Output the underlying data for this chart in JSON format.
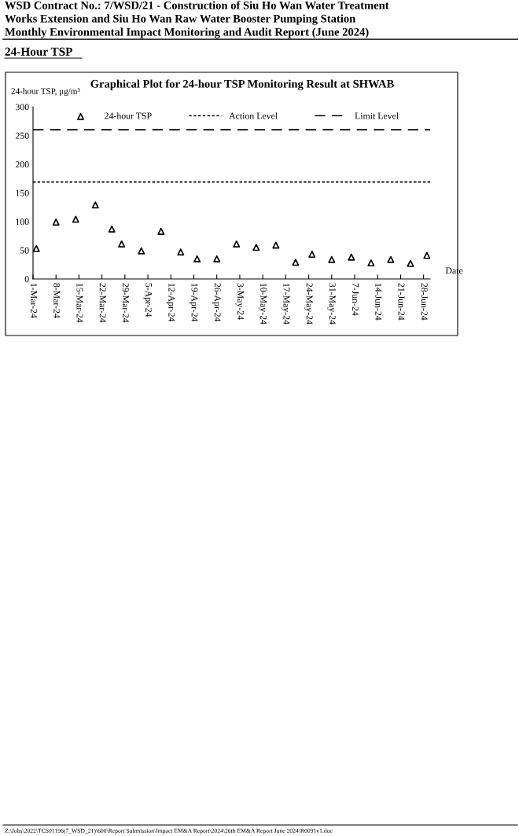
{
  "chart_data": {
    "type": "scatter",
    "title": "Graphical Plot for 24-hour TSP Monitoring Result at SHWAB",
    "ylabel": "24-hour TSP, μg/m³",
    "xlabel": "Date",
    "annotations": [
      "WSD Contract No.: 7/WSD/21 - Construction of Siu Ho Wan Water Treatment",
      "Works Extension and Siu Ho Wan Raw Water Booster Pumping Station",
      "Monthly Environmental Impact Monitoring and Audit Report (June 2024)",
      "24-Hour TSP",
      "Z:\\Jobs\\2022\\TCS01196(7_WSD_21)\\600\\Report Submission\\Impact EM&A Report\\2024\\26th EM&A Report June 2024\\R0091v1.doc"
    ],
    "x": [
      "2024-03-02",
      "2024-03-08",
      "2024-03-14",
      "2024-03-20",
      "2024-03-25",
      "2024-03-28",
      "2024-04-03",
      "2024-04-09",
      "2024-04-15",
      "2024-04-20",
      "2024-04-26",
      "2024-05-02",
      "2024-05-08",
      "2024-05-14",
      "2024-05-20",
      "2024-05-25",
      "2024-05-31",
      "2024-06-06",
      "2024-06-12",
      "2024-06-18",
      "2024-06-24",
      "2024-06-29"
    ],
    "series": [
      {
        "name": "24-hour TSP",
        "color": "#000000",
        "values": [
          53,
          99,
          104,
          129,
          87,
          61,
          49,
          83,
          47,
          35,
          35,
          61,
          55,
          59,
          29,
          43,
          34,
          38,
          28,
          34,
          27,
          41
        ]
      }
    ],
    "xlim": [
      "2024-03-01",
      "2024-06-30"
    ],
    "xticks": [
      {
        "value": "2024-03-01",
        "label": "1-Mar-24"
      },
      {
        "value": "2024-03-08",
        "label": "8-Mar-24"
      },
      {
        "value": "2024-03-15",
        "label": "15-Mar-24"
      },
      {
        "value": "2024-03-22",
        "label": "22-Mar-24"
      },
      {
        "value": "2024-03-29",
        "label": "29-Mar-24"
      },
      {
        "value": "2024-04-05",
        "label": "5-Apr-24"
      },
      {
        "value": "2024-04-12",
        "label": "12-Apr-24"
      },
      {
        "value": "2024-04-19",
        "label": "19-Apr-24"
      },
      {
        "value": "2024-04-26",
        "label": "26-Apr-24"
      },
      {
        "value": "2024-05-03",
        "label": "3-May-24"
      },
      {
        "value": "2024-05-10",
        "label": "10-May-24"
      },
      {
        "value": "2024-05-17",
        "label": "17-May-24"
      },
      {
        "value": "2024-05-24",
        "label": "24-May-24"
      },
      {
        "value": "2024-05-31",
        "label": "31-May-24"
      },
      {
        "value": "2024-06-07",
        "label": "7-Jun-24"
      },
      {
        "value": "2024-06-14",
        "label": "14-Jun-24"
      },
      {
        "value": "2024-06-21",
        "label": "21-Jun-24"
      },
      {
        "value": "2024-06-28",
        "label": "28-Jun-24"
      }
    ],
    "ylim": [
      0,
      300
    ],
    "yticks": [
      0,
      50,
      100,
      150,
      200,
      250,
      300
    ],
    "ref_lines": [
      {
        "axis": "y",
        "value": 169,
        "label": "Action Level",
        "color": "#000000",
        "line_style": "dotted"
      },
      {
        "axis": "y",
        "value": 260,
        "label": "Limit Level",
        "color": "#000000",
        "line_style": "dashed"
      }
    ],
    "marker": "triangle",
    "legend": "top",
    "grid": false
  }
}
